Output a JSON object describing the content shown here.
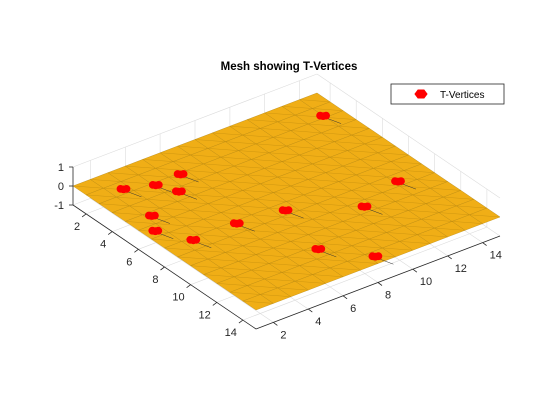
{
  "chart_data": {
    "type": "surface3d",
    "title": "Mesh showing T-Vertices",
    "xlabel": "",
    "ylabel": "",
    "zlabel": "",
    "xlim": [
      1,
      15
    ],
    "ylim": [
      1,
      15
    ],
    "zlim": [
      -1,
      1
    ],
    "x_ticks": [
      "2",
      "4",
      "6",
      "8",
      "10",
      "12",
      "14"
    ],
    "y_ticks": [
      "2",
      "4",
      "6",
      "8",
      "10",
      "12",
      "14"
    ],
    "z_ticks": [
      "1",
      "0",
      "-1"
    ],
    "grid": true,
    "surface": {
      "z": 0,
      "mesh_spacing": 1,
      "face_color": "#f0ae16",
      "edge_color": "#b8860b"
    },
    "legend": {
      "placement": "top-right",
      "entries": [
        "T-Vertices"
      ]
    },
    "series": [
      {
        "name": "T-Vertices",
        "marker": "filled-circle",
        "color": "#ff0000",
        "points": [
          [
            2.6,
            2.7,
            0
          ],
          [
            3.2,
            4.1,
            0
          ],
          [
            3.1,
            5.6,
            0
          ],
          [
            2.8,
            14.0,
            0
          ],
          [
            6.5,
            1.6,
            0
          ],
          [
            8.2,
            5.0,
            0
          ],
          [
            8.6,
            7.5,
            0
          ],
          [
            10.5,
            10.6,
            0
          ],
          [
            9.6,
            13.2,
            0
          ],
          [
            12.3,
            6.6,
            0
          ],
          [
            14.4,
            8.3,
            0
          ],
          [
            8.2,
            2.5,
            0
          ],
          [
            5.3,
            2.3,
            0
          ],
          [
            4.3,
            4.6,
            0
          ]
        ]
      }
    ]
  }
}
